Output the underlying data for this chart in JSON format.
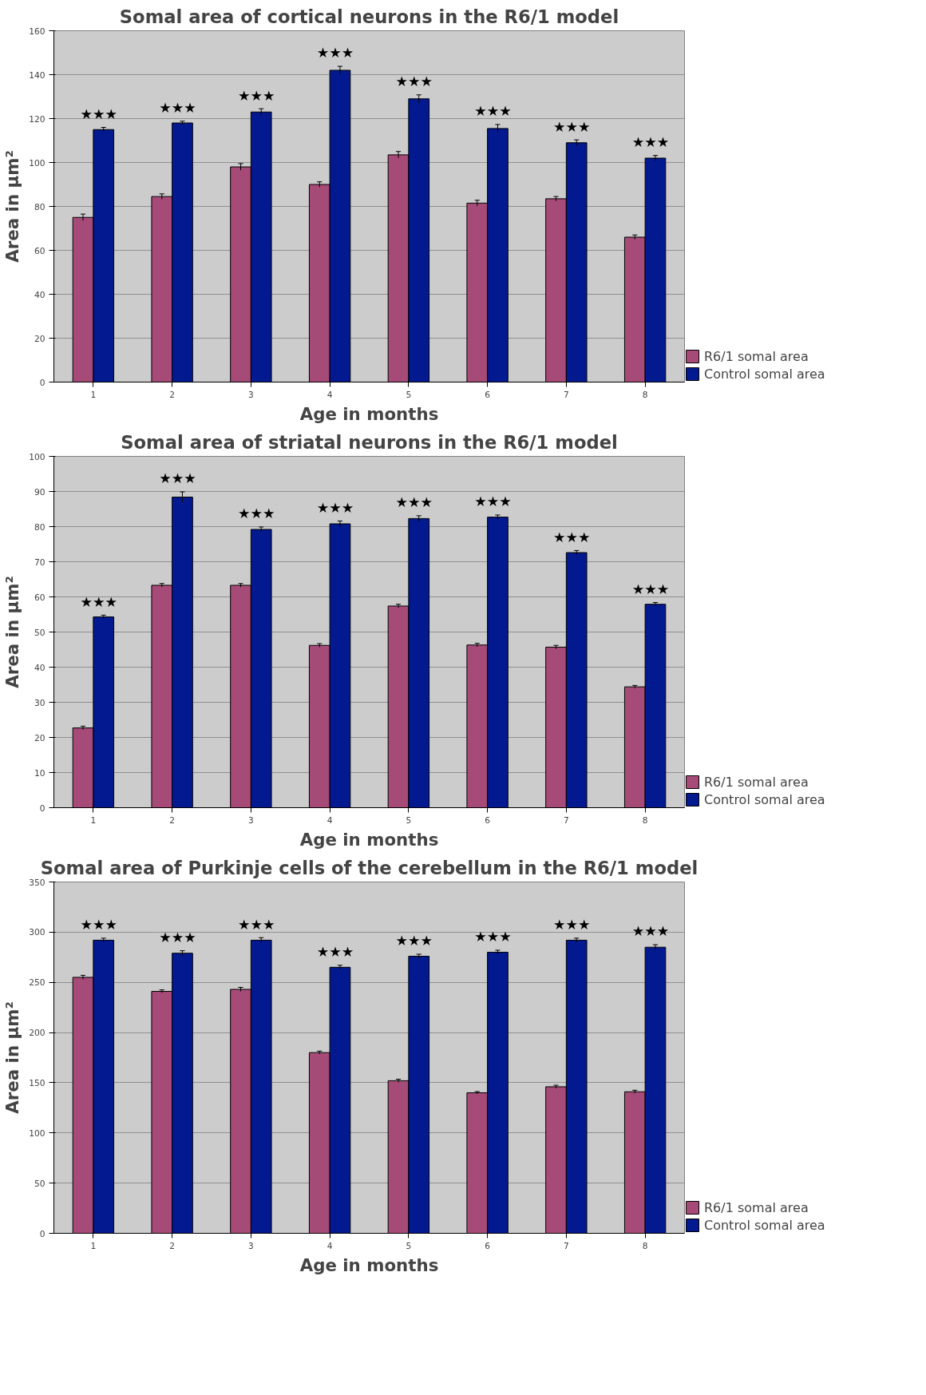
{
  "chart_data": [
    {
      "type": "bar",
      "title": "Somal area of cortical neurons in the R6/1 model",
      "xlabel": "Age in months",
      "ylabel": "Area in µm²",
      "categories": [
        "1",
        "2",
        "3",
        "4",
        "5",
        "6",
        "7",
        "8"
      ],
      "series": [
        {
          "name": "R6/1 somal area",
          "color": "#a64a78",
          "values": [
            75,
            84.5,
            98,
            90,
            103.5,
            81.5,
            83.5,
            66
          ],
          "errors": [
            1.5,
            1.2,
            1.5,
            1.2,
            1.5,
            1.3,
            1,
            1
          ]
        },
        {
          "name": "Control somal area",
          "color": "#03198f",
          "values": [
            115,
            118,
            123,
            142,
            129,
            115.5,
            109,
            102
          ],
          "errors": [
            1,
            0.8,
            1.5,
            1.8,
            1.8,
            1.8,
            1.3,
            1.2
          ]
        }
      ],
      "ylim": [
        0,
        160
      ],
      "yticks": [
        0,
        20,
        40,
        60,
        80,
        100,
        120,
        140,
        160
      ],
      "grid": "y",
      "legend": "bottom right",
      "annotations": [
        "★★★",
        "★★★",
        "★★★",
        "★★★",
        "★★★",
        "★★★",
        "★★★",
        "★★★"
      ]
    },
    {
      "type": "bar",
      "title": "Somal area of striatal neurons in the R6/1 model",
      "xlabel": "Age in months",
      "ylabel": "Area in µm²",
      "categories": [
        "1",
        "2",
        "3",
        "4",
        "5",
        "6",
        "7",
        "8"
      ],
      "series": [
        {
          "name": "R6/1 somal area",
          "color": "#a64a78",
          "values": [
            22.7,
            63.3,
            63.3,
            46.2,
            57.4,
            46.3,
            45.7,
            34.4
          ],
          "errors": [
            0.5,
            0.5,
            0.5,
            0.5,
            0.5,
            0.5,
            0.5,
            0.4
          ]
        },
        {
          "name": "Control somal area",
          "color": "#03198f",
          "values": [
            54.3,
            88.4,
            79.2,
            80.8,
            82.3,
            82.7,
            72.6,
            57.9
          ],
          "errors": [
            0.5,
            1.5,
            0.7,
            0.8,
            0.8,
            0.6,
            0.6,
            0.5
          ]
        }
      ],
      "ylim": [
        0,
        100
      ],
      "yticks": [
        0,
        10,
        20,
        30,
        40,
        50,
        60,
        70,
        80,
        90,
        100
      ],
      "grid": "y",
      "legend": "bottom right",
      "annotations": [
        "★★★",
        "★★★",
        "★★★",
        "★★★",
        "★★★",
        "★★★",
        "★★★",
        "★★★"
      ]
    },
    {
      "type": "bar",
      "title": "Somal area of Purkinje cells of the cerebellum in the R6/1 model",
      "xlabel": "Age in months",
      "ylabel": "Area in µm²",
      "categories": [
        "1",
        "2",
        "3",
        "4",
        "5",
        "6",
        "7",
        "8"
      ],
      "series": [
        {
          "name": "R6/1 somal area",
          "color": "#a64a78",
          "values": [
            255,
            241,
            243,
            180,
            152,
            140,
            146,
            141
          ],
          "errors": [
            2,
            1.5,
            2,
            1.5,
            1.5,
            1.2,
            1.5,
            1.5
          ]
        },
        {
          "name": "Control somal area",
          "color": "#03198f",
          "values": [
            292,
            279,
            292,
            265,
            276,
            280,
            292,
            285
          ],
          "errors": [
            2,
            2.5,
            2.5,
            2,
            2,
            2,
            2,
            2.5
          ]
        }
      ],
      "ylim": [
        0,
        350
      ],
      "yticks": [
        0,
        50,
        100,
        150,
        200,
        250,
        300,
        350
      ],
      "grid": "y",
      "legend": "bottom right",
      "annotations": [
        "★★★",
        "★★★",
        "★★★",
        "★★★",
        "★★★",
        "★★★",
        "★★★",
        "★★★"
      ]
    }
  ]
}
